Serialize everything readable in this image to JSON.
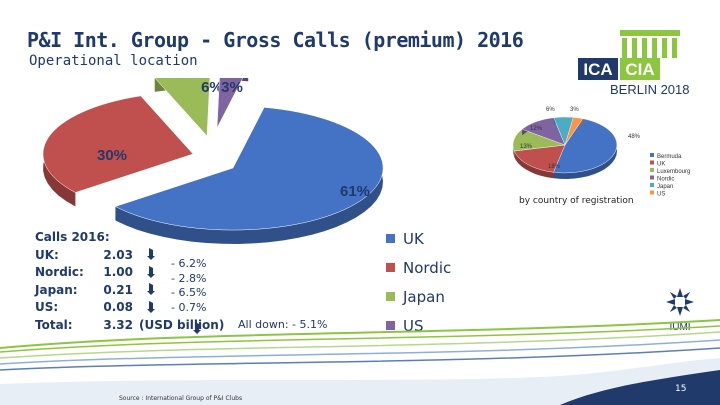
{
  "title": "P&I  Int. Group - Gross Calls (premium) 2016",
  "subtitle": "Operational location",
  "logo": {
    "left_text": "ICA",
    "right_text": "CIA",
    "city_year": "BERLIN 2018"
  },
  "chart_data": [
    {
      "type": "pie",
      "categories": [
        "UK",
        "Nordic",
        "Japan",
        "US"
      ],
      "values": [
        61,
        30,
        6,
        3
      ],
      "labels": [
        "61%",
        "30%",
        "6%",
        "3%"
      ],
      "colors": [
        "#4472c4",
        "#c0504d",
        "#9bbb59",
        "#8064a2"
      ],
      "legend": "right"
    },
    {
      "type": "pie",
      "categories": [
        "Bermuda",
        "UK",
        "Luxembourg",
        "Nordic",
        "Japan",
        "US"
      ],
      "values": [
        48,
        18,
        13,
        12,
        6,
        3
      ],
      "labels": [
        "48%",
        "18%",
        "13%",
        "12%",
        "6%",
        "3%"
      ],
      "colors": [
        "#4472c4",
        "#c0504d",
        "#9bbb59",
        "#8064a2",
        "#4bacc6",
        "#f79646"
      ],
      "legend": "right",
      "note": "by country of registration"
    }
  ],
  "calls": {
    "heading": "Calls 2016:",
    "rows": [
      {
        "label": "UK:",
        "value": "2.03"
      },
      {
        "label": "Nordic:",
        "value": "1.00"
      },
      {
        "label": "Japan:",
        "value": "0.21"
      },
      {
        "label": "US:",
        "value": "0.08"
      }
    ],
    "total_label": "Total:",
    "total_value": "3.32",
    "unit": "(USD billion)"
  },
  "changes": [
    "- 6.2%",
    "- 2.8%",
    "- 6.5%",
    "- 0.7%"
  ],
  "all_down": "All down: - 5.1%",
  "source": "Source : International Group of P&I Clubs",
  "iumi": "IUMI",
  "page_number": "15",
  "colors": {
    "title": "#1f3a6b",
    "green_wave": "#8cc63f",
    "blue_wave": "#1f3a6b"
  },
  "icons": [
    "arrow-down-icon",
    "iumi-logo-icon",
    "ica-cia-logo"
  ]
}
